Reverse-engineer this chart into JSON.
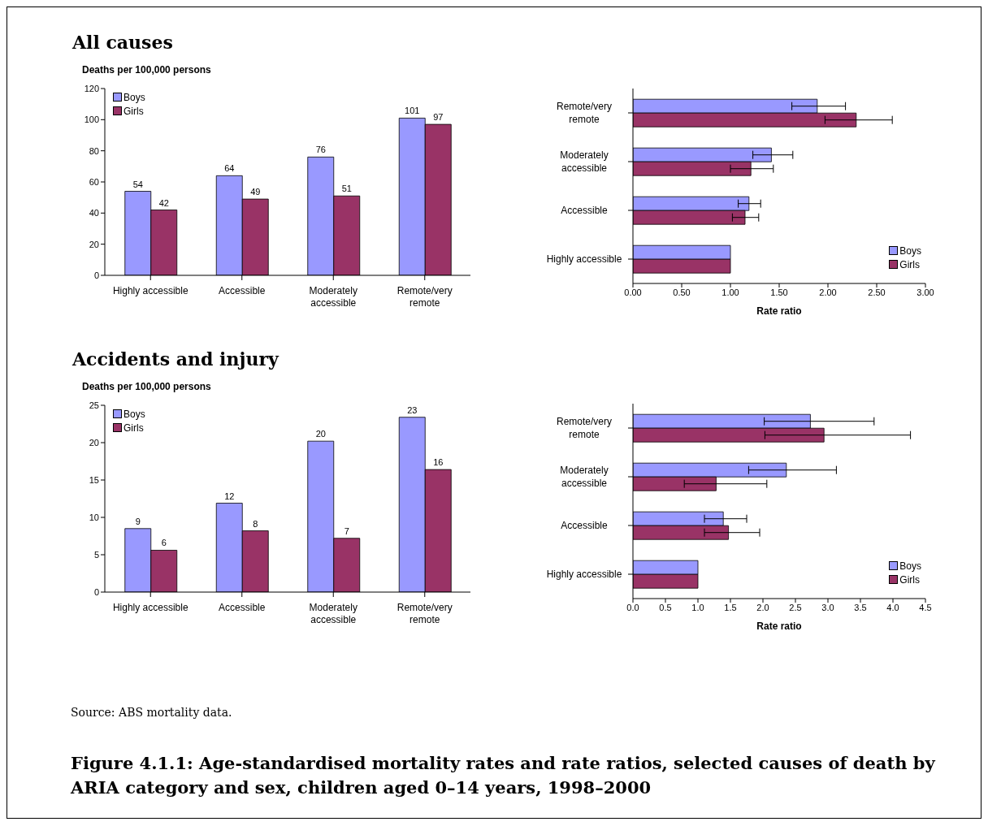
{
  "chart_data": [
    {
      "type": "bar",
      "title": "All causes",
      "ylabel": "Deaths per 100,000 persons",
      "categories": [
        "Highly accessible",
        "Accessible",
        "Moderately accessible",
        "Remote/very remote"
      ],
      "series": [
        {
          "name": "Boys",
          "color": "#9999ff",
          "values": [
            54,
            64,
            76,
            101
          ]
        },
        {
          "name": "Girls",
          "color": "#993366",
          "values": [
            42,
            49,
            51,
            97
          ]
        }
      ],
      "ylim": [
        0,
        120
      ],
      "yticks": [
        0,
        20,
        40,
        60,
        80,
        100,
        120
      ],
      "data_labels": true,
      "legend": "top left",
      "grid": false
    },
    {
      "type": "bar",
      "orientation": "horizontal",
      "xlabel": "Rate ratio",
      "categories": [
        "Remote/very remote",
        "Moderately accessible",
        "Accessible",
        "Highly accessible"
      ],
      "series": [
        {
          "name": "Boys",
          "color": "#9999ff",
          "values": [
            1.89,
            1.42,
            1.19,
            1.0
          ],
          "errors": [
            [
              1.63,
              2.18
            ],
            [
              1.23,
              1.64
            ],
            [
              1.08,
              1.31
            ],
            null
          ]
        },
        {
          "name": "Girls",
          "color": "#993366",
          "values": [
            2.29,
            1.21,
            1.15,
            1.0
          ],
          "errors": [
            [
              1.97,
              2.66
            ],
            [
              1.0,
              1.44
            ],
            [
              1.02,
              1.29
            ],
            null
          ]
        }
      ],
      "xlim": [
        0,
        3
      ],
      "xticks": [
        {
          "value": 0,
          "label": "0.00"
        },
        {
          "value": 0.5,
          "label": "0.50"
        },
        {
          "value": 1,
          "label": "1.00"
        },
        {
          "value": 1.5,
          "label": "1.50"
        },
        {
          "value": 2,
          "label": "2.00"
        },
        {
          "value": 2.5,
          "label": "2.50"
        },
        {
          "value": 3,
          "label": "3.00"
        }
      ],
      "legend": "bottom right",
      "grid": false
    },
    {
      "type": "bar",
      "title": "Accidents and injury",
      "ylabel": "Deaths per 100,000 persons",
      "categories": [
        "Highly accessible",
        "Accessible",
        "Moderately accessible",
        "Remote/very remote"
      ],
      "series": [
        {
          "name": "Boys",
          "color": "#9999ff",
          "values": [
            8.5,
            11.9,
            20.2,
            23.4
          ],
          "value_labels": [
            "9",
            "12",
            "20",
            "23"
          ]
        },
        {
          "name": "Girls",
          "color": "#993366",
          "values": [
            5.6,
            8.2,
            7.2,
            16.4
          ],
          "value_labels": [
            "6",
            "8",
            "7",
            "16"
          ]
        }
      ],
      "ylim": [
        0,
        25
      ],
      "yticks": [
        0,
        5,
        10,
        15,
        20,
        25
      ],
      "legend": "top left",
      "grid": false
    },
    {
      "type": "bar",
      "orientation": "horizontal",
      "xlabel": "Rate ratio",
      "categories": [
        "Remote/very remote",
        "Moderately accessible",
        "Accessible",
        "Highly accessible"
      ],
      "series": [
        {
          "name": "Boys",
          "color": "#9999ff",
          "values": [
            2.73,
            2.36,
            1.39,
            1.0
          ],
          "errors": [
            [
              2.02,
              3.71
            ],
            [
              1.78,
              3.13
            ],
            [
              1.1,
              1.75
            ],
            null
          ]
        },
        {
          "name": "Girls",
          "color": "#993366",
          "values": [
            2.94,
            1.28,
            1.47,
            1.0
          ],
          "errors": [
            [
              2.03,
              4.27
            ],
            [
              0.79,
              2.06
            ],
            [
              1.1,
              1.95
            ],
            null
          ]
        }
      ],
      "xlim": [
        0,
        4.5
      ],
      "xticks": [
        {
          "value": 0,
          "label": "0.0"
        },
        0.5,
        {
          "value": 1,
          "label": "1.0"
        },
        1.5,
        {
          "value": 2,
          "label": "2.0"
        },
        2.5,
        {
          "value": 3,
          "label": "3.0"
        },
        3.5,
        {
          "value": 4,
          "label": "4.0"
        },
        4.5
      ],
      "legend": "bottom right",
      "grid": false,
      "annotations": [
        "Source: ABS mortality data.",
        "Figure 4.1.1: Age-standardised mortality rates and rate ratios, selected causes of death by ARIA category and sex, children aged 0–14 years, 1998–2000"
      ]
    }
  ]
}
